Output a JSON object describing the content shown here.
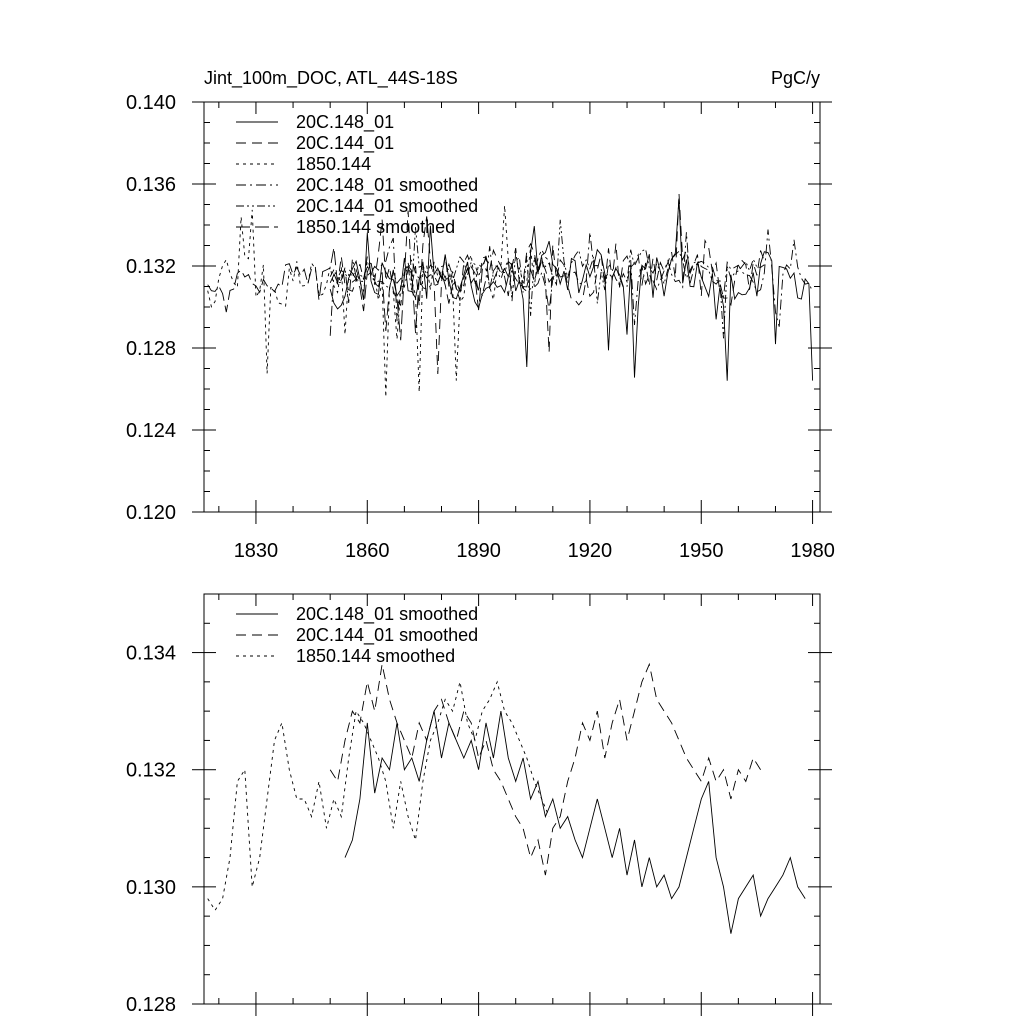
{
  "chart_data": [
    {
      "type": "line",
      "title": "Jint_100m_DOC, ATL_44S-18S",
      "units": "PgC/y",
      "xlim": [
        1816,
        1982
      ],
      "ylim": [
        0.12,
        0.14
      ],
      "x_ticks": [
        "1830",
        "1860",
        "1890",
        "1920",
        "1950",
        "1980"
      ],
      "y_ticks": [
        "0.120",
        "0.124",
        "0.128",
        "0.132",
        "0.136",
        "0.140"
      ],
      "series": [
        {
          "name": "20C.148_01",
          "style": "solid",
          "x_start": 1850,
          "x_end": 1980,
          "base": 0.1315,
          "amp": 0.0022,
          "seed": 11
        },
        {
          "name": "20C.144_01",
          "style": "dash",
          "x_start": 1850,
          "x_end": 1967,
          "base": 0.1318,
          "amp": 0.0022,
          "seed": 23
        },
        {
          "name": "1850.144",
          "style": "dot",
          "x_start": 1817,
          "x_end": 1910,
          "base": 0.1314,
          "amp": 0.0022,
          "seed": 37
        },
        {
          "name": "20C.148_01 smoothed",
          "style": "dashdot",
          "x_start": 1850,
          "x_end": 1980,
          "base": 0.1315,
          "amp": 0.0012,
          "seed": 41
        },
        {
          "name": "20C.144_01 smoothed",
          "style": "dashdotdot",
          "x_start": 1850,
          "x_end": 1967,
          "base": 0.1318,
          "amp": 0.0012,
          "seed": 53
        },
        {
          "name": "1850.144 smoothed",
          "style": "longdash",
          "x_start": 1817,
          "x_end": 1910,
          "base": 0.1314,
          "amp": 0.0012,
          "seed": 67
        }
      ]
    },
    {
      "type": "line",
      "xlim": [
        1816,
        1982
      ],
      "ylim": [
        0.128,
        0.135
      ],
      "y_ticks": [
        "0.128",
        "0.130",
        "0.132",
        "0.134"
      ],
      "series": [
        {
          "name": "20C.148_01 smoothed",
          "style": "solid",
          "x": [
            1854,
            1856,
            1858,
            1860,
            1862,
            1864,
            1866,
            1868,
            1870,
            1872,
            1874,
            1876,
            1878,
            1880,
            1882,
            1884,
            1886,
            1888,
            1890,
            1892,
            1894,
            1896,
            1898,
            1900,
            1902,
            1904,
            1906,
            1908,
            1910,
            1912,
            1914,
            1916,
            1918,
            1920,
            1922,
            1924,
            1926,
            1928,
            1930,
            1932,
            1934,
            1936,
            1938,
            1940,
            1942,
            1944,
            1946,
            1948,
            1950,
            1952,
            1954,
            1956,
            1958,
            1960,
            1962,
            1964,
            1966,
            1968,
            1970,
            1972,
            1974,
            1976,
            1978
          ],
          "y": [
            0.1305,
            0.1308,
            0.1315,
            0.1328,
            0.1316,
            0.1322,
            0.132,
            0.1328,
            0.132,
            0.1322,
            0.1318,
            0.1325,
            0.133,
            0.1322,
            0.1328,
            0.1325,
            0.1322,
            0.1325,
            0.132,
            0.1328,
            0.1322,
            0.133,
            0.1322,
            0.1318,
            0.1322,
            0.1315,
            0.1318,
            0.1312,
            0.1315,
            0.131,
            0.1312,
            0.1308,
            0.1305,
            0.131,
            0.1315,
            0.131,
            0.1305,
            0.131,
            0.1302,
            0.1308,
            0.13,
            0.1305,
            0.13,
            0.1302,
            0.1298,
            0.13,
            0.1305,
            0.131,
            0.1315,
            0.1318,
            0.1305,
            0.13,
            0.1292,
            0.1298,
            0.13,
            0.1302,
            0.1295,
            0.1298,
            0.13,
            0.1302,
            0.1305,
            0.13,
            0.1298
          ]
        },
        {
          "name": "20C.144_01 smoothed",
          "style": "dash",
          "x": [
            1850,
            1852,
            1854,
            1856,
            1858,
            1860,
            1862,
            1864,
            1866,
            1868,
            1870,
            1872,
            1874,
            1876,
            1878,
            1880,
            1882,
            1884,
            1886,
            1888,
            1890,
            1892,
            1894,
            1896,
            1898,
            1900,
            1902,
            1904,
            1906,
            1908,
            1910,
            1912,
            1914,
            1916,
            1918,
            1920,
            1922,
            1924,
            1926,
            1928,
            1930,
            1932,
            1934,
            1936,
            1938,
            1940,
            1942,
            1944,
            1946,
            1948,
            1950,
            1952,
            1954,
            1956,
            1958,
            1960,
            1962,
            1964,
            1966
          ],
          "y": [
            0.132,
            0.1318,
            0.1325,
            0.133,
            0.1328,
            0.1335,
            0.133,
            0.1338,
            0.1332,
            0.1328,
            0.1325,
            0.1322,
            0.1328,
            0.1325,
            0.133,
            0.1332,
            0.1328,
            0.1325,
            0.133,
            0.1328,
            0.1322,
            0.1325,
            0.132,
            0.1318,
            0.1315,
            0.1312,
            0.131,
            0.1305,
            0.1308,
            0.1302,
            0.131,
            0.1312,
            0.1318,
            0.1322,
            0.1328,
            0.1325,
            0.133,
            0.1322,
            0.1328,
            0.1332,
            0.1325,
            0.133,
            0.1335,
            0.1338,
            0.1332,
            0.133,
            0.1328,
            0.1325,
            0.1322,
            0.132,
            0.1318,
            0.1322,
            0.1318,
            0.132,
            0.1315,
            0.132,
            0.1318,
            0.1322,
            0.132
          ]
        },
        {
          "name": "1850.144 smoothed",
          "style": "dot",
          "x": [
            1817,
            1819,
            1821,
            1823,
            1825,
            1827,
            1829,
            1831,
            1833,
            1835,
            1837,
            1839,
            1841,
            1843,
            1845,
            1847,
            1849,
            1851,
            1853,
            1855,
            1857,
            1859,
            1861,
            1863,
            1865,
            1867,
            1869,
            1871,
            1873,
            1875,
            1877,
            1879,
            1881,
            1883,
            1885,
            1887,
            1889,
            1891,
            1893,
            1895,
            1897,
            1899,
            1901,
            1903,
            1905,
            1907,
            1909
          ],
          "y": [
            0.1298,
            0.1296,
            0.1298,
            0.1305,
            0.1318,
            0.132,
            0.13,
            0.1305,
            0.1315,
            0.1325,
            0.1328,
            0.132,
            0.1315,
            0.1315,
            0.1312,
            0.1318,
            0.131,
            0.1315,
            0.1312,
            0.1322,
            0.133,
            0.1328,
            0.1325,
            0.1322,
            0.1318,
            0.131,
            0.1318,
            0.1312,
            0.1308,
            0.1318,
            0.1325,
            0.1328,
            0.1332,
            0.133,
            0.1335,
            0.1328,
            0.1325,
            0.133,
            0.1332,
            0.1335,
            0.133,
            0.1328,
            0.1325,
            0.1322,
            0.1318,
            0.1315,
            0.1312
          ]
        }
      ]
    }
  ]
}
